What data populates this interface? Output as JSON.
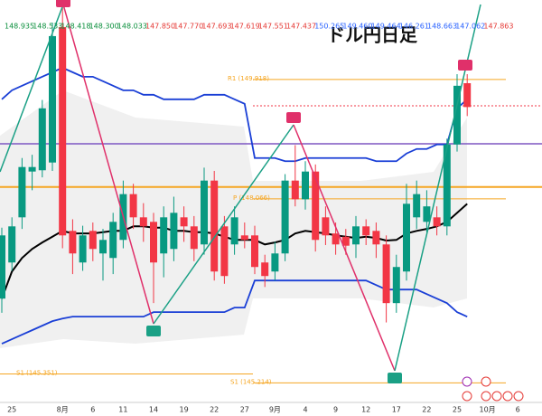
{
  "chart_data": {
    "type": "candlestick",
    "title": "ドル円日足",
    "categories": [
      null,
      "25",
      null,
      null,
      null,
      null,
      "8月",
      null,
      null,
      "6",
      null,
      null,
      "11",
      null,
      null,
      "14",
      null,
      null,
      "19",
      null,
      null,
      "22",
      null,
      null,
      "27",
      null,
      null,
      "9月",
      null,
      null,
      "4",
      null,
      null,
      "9",
      null,
      null,
      "12",
      null,
      null,
      "17",
      null,
      null,
      "22",
      null,
      null,
      "25",
      null,
      null,
      "10月",
      null,
      null,
      "6"
    ],
    "open": [
      146.52,
      147.08,
      147.78,
      148.49,
      148.51,
      148.63,
      150.73,
      147.57,
      147.08,
      147.57,
      147.22,
      147.15,
      147.43,
      148.14,
      147.78,
      147.71,
      147.22,
      147.29,
      147.78,
      147.64,
      147.36,
      148.35,
      147.64,
      147.36,
      147.5,
      147.5,
      147.08,
      146.94,
      147.22,
      148.35,
      148.06,
      148.49,
      147.78,
      147.53,
      147.48,
      147.36,
      147.64,
      147.57,
      147.36,
      146.45,
      146.94,
      147.78,
      147.71,
      147.78,
      147.64,
      148.91,
      149.86,
      null,
      null,
      null,
      null,
      null
    ],
    "high": [
      147.62,
      147.78,
      148.7,
      148.75,
      149.6,
      150.8,
      151.05,
      147.75,
      147.65,
      147.7,
      147.6,
      147.85,
      148.35,
      148.3,
      148.0,
      147.85,
      147.95,
      148.1,
      147.95,
      147.8,
      148.55,
      148.5,
      147.8,
      147.95,
      147.7,
      147.65,
      147.2,
      147.4,
      148.45,
      148.9,
      148.65,
      148.6,
      147.95,
      147.7,
      147.6,
      147.8,
      147.75,
      147.7,
      147.5,
      147.2,
      148.3,
      148.35,
      148.2,
      147.95,
      149.0,
      150.0,
      150.0,
      null,
      null,
      null,
      null,
      null
    ],
    "low": [
      146.3,
      146.95,
      147.6,
      148.2,
      148.4,
      148.5,
      147.3,
      146.9,
      146.95,
      147.1,
      146.8,
      146.9,
      147.3,
      147.6,
      147.4,
      146.45,
      146.85,
      147.1,
      147.4,
      147.1,
      147.2,
      146.8,
      146.75,
      147.2,
      147.3,
      146.9,
      146.7,
      146.8,
      147.1,
      147.95,
      147.9,
      147.25,
      147.35,
      147.2,
      147.2,
      147.15,
      147.35,
      147.15,
      146.15,
      146.3,
      146.8,
      147.6,
      147.55,
      147.5,
      147.5,
      148.8,
      149.35,
      null,
      null,
      null,
      null,
      null
    ],
    "close": [
      147.5,
      147.64,
      148.56,
      148.56,
      149.47,
      150.59,
      147.5,
      147.22,
      147.5,
      147.29,
      147.43,
      147.71,
      148.14,
      147.78,
      147.64,
      147.08,
      147.78,
      147.85,
      147.64,
      147.29,
      148.35,
      146.94,
      146.87,
      147.78,
      147.43,
      147.01,
      146.87,
      147.22,
      148.35,
      148.06,
      148.49,
      147.43,
      147.5,
      147.36,
      147.34,
      147.64,
      147.5,
      147.36,
      146.45,
      147.01,
      147.99,
      148.14,
      147.95,
      147.64,
      148.91,
      149.82,
      149.49,
      null,
      null,
      null,
      null,
      null
    ],
    "up_color": "#089981",
    "down_color": "#f23645",
    "overlays": [
      {
        "color": "#1a3fd6",
        "values": [
          149.61,
          149.75,
          149.82,
          149.89,
          149.96,
          150.03,
          150.1,
          150.03,
          149.96,
          149.96,
          149.89,
          149.82,
          149.75,
          149.75,
          149.68,
          149.68,
          149.61,
          149.61,
          149.61,
          149.61,
          149.68,
          149.68,
          149.68,
          149.61,
          149.54,
          148.7,
          148.7,
          148.7,
          148.65,
          148.65,
          148.7,
          148.7,
          148.7,
          148.7,
          148.7,
          148.7,
          148.7,
          148.65,
          148.65,
          148.65,
          148.77,
          148.84,
          148.84,
          148.91,
          148.91,
          149.47,
          149.61,
          null,
          null,
          null,
          null,
          null
        ]
      },
      {
        "color": "#1a3fd6",
        "values": [
          145.82,
          145.89,
          145.96,
          146.03,
          146.1,
          146.17,
          146.21,
          146.24,
          146.24,
          146.24,
          146.24,
          146.24,
          146.24,
          146.24,
          146.24,
          146.31,
          146.31,
          146.31,
          146.31,
          146.31,
          146.31,
          146.31,
          146.31,
          146.38,
          146.38,
          146.8,
          146.8,
          146.8,
          146.8,
          146.8,
          146.8,
          146.8,
          146.8,
          146.8,
          146.8,
          146.8,
          146.8,
          146.73,
          146.66,
          146.66,
          146.66,
          146.66,
          146.59,
          146.52,
          146.45,
          146.31,
          146.24,
          null,
          null,
          null,
          null,
          null
        ]
      },
      {
        "color": "#000000",
        "values": [
          146.52,
          146.94,
          147.15,
          147.29,
          147.39,
          147.48,
          147.57,
          147.53,
          147.53,
          147.53,
          147.55,
          147.57,
          147.57,
          147.64,
          147.64,
          147.62,
          147.62,
          147.57,
          147.57,
          147.55,
          147.55,
          147.53,
          147.48,
          147.43,
          147.43,
          147.43,
          147.36,
          147.39,
          147.43,
          147.53,
          147.57,
          147.55,
          147.53,
          147.5,
          147.48,
          147.46,
          147.48,
          147.46,
          147.42,
          147.43,
          147.53,
          147.57,
          147.6,
          147.64,
          147.71,
          147.85,
          147.99,
          null,
          null,
          null,
          null,
          null
        ]
      }
    ],
    "levels": [
      {
        "label": "R1 (149.918)",
        "value": 149.918
      },
      {
        "label": "P (148.066)",
        "value": 148.066
      },
      {
        "label": "S1 (145.351)",
        "value": 145.351
      },
      {
        "label": "S1 (145.214)",
        "value": 145.214
      }
    ],
    "level_color": "#f5a623",
    "lines": [
      {
        "value": 148.25,
        "color": "#f5a623",
        "width": 2
      },
      {
        "value": 148.92,
        "color": "#7e57c2",
        "width": 1.5
      },
      {
        "value": 149.51,
        "color": "#f23645",
        "width": 1,
        "dashed": true
      }
    ],
    "ylim": [
      144.98,
      151.15
    ],
    "price_strip": [
      {
        "text": "148.935",
        "color": "#0a8f3c"
      },
      {
        "text": "148.533",
        "color": "#0a8f3c"
      },
      {
        "text": "148.418",
        "color": "#0a8f3c"
      },
      {
        "text": "148.300",
        "color": "#0a8f3c"
      },
      {
        "text": "148.033",
        "color": "#0a8f3c"
      },
      {
        "text": "147.850",
        "color": "#e53935"
      },
      {
        "text": "147.770",
        "color": "#e53935"
      },
      {
        "text": "147.693",
        "color": "#e53935"
      },
      {
        "text": "147.619",
        "color": "#e53935"
      },
      {
        "text": "147.551",
        "color": "#e53935"
      },
      {
        "text": "147.437",
        "color": "#e53935"
      },
      {
        "text": "150.265",
        "color": "#2962ff"
      },
      {
        "text": "149.460",
        "color": "#2962ff"
      },
      {
        "text": "149.464",
        "color": "#2962ff"
      },
      {
        "text": "146.261",
        "color": "#2962ff"
      },
      {
        "text": "148.663",
        "color": "#2962ff"
      },
      {
        "text": "147.062",
        "color": "#2962ff"
      },
      {
        "text": "147.863",
        "color": "#e53935"
      }
    ]
  }
}
